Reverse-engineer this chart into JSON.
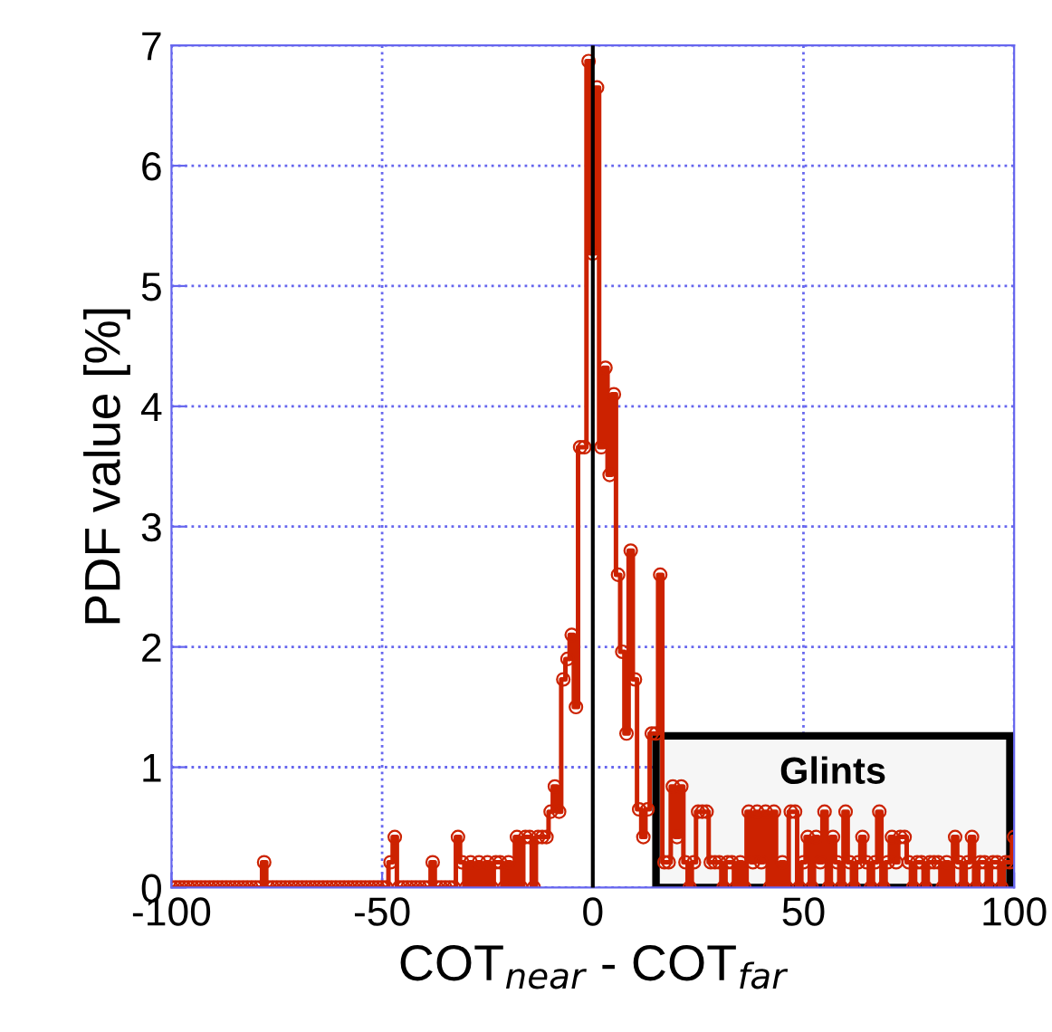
{
  "chart_data": {
    "type": "step",
    "xlabel": "COT$_{near}$ - COT$_{far}$",
    "ylabel": "PDF value [%]",
    "x": [
      -100,
      -99,
      -98,
      -97,
      -96,
      -95,
      -94,
      -93,
      -92,
      -91,
      -90,
      -89,
      -88,
      -87,
      -86,
      -85,
      -84,
      -83,
      -82,
      -81,
      -80,
      -79,
      -78,
      -77,
      -76,
      -75,
      -74,
      -73,
      -72,
      -71,
      -70,
      -69,
      -68,
      -67,
      -66,
      -65,
      -64,
      -63,
      -62,
      -61,
      -60,
      -59,
      -58,
      -57,
      -56,
      -55,
      -54,
      -53,
      -52,
      -51,
      -50,
      -49,
      -48,
      -47,
      -46,
      -45,
      -44,
      -43,
      -42,
      -41,
      -40,
      -39,
      -38,
      -37,
      -36,
      -35,
      -34,
      -33,
      -32,
      -31,
      -30,
      -29,
      -28,
      -27,
      -26,
      -25,
      -24,
      -23,
      -22,
      -21,
      -20,
      -19,
      -18,
      -17,
      -16,
      -15,
      -14,
      -13,
      -12,
      -11,
      -10,
      -9,
      -8,
      -7,
      -6,
      -5,
      -4,
      -3,
      -2,
      -1,
      0,
      1,
      2,
      3,
      4,
      5,
      6,
      7,
      8,
      9,
      10,
      11,
      12,
      13,
      14,
      15,
      16,
      17,
      18,
      19,
      20,
      21,
      22,
      23,
      24,
      25,
      26,
      27,
      28,
      29,
      30,
      31,
      32,
      33,
      34,
      35,
      36,
      37,
      38,
      39,
      40,
      41,
      42,
      43,
      44,
      45,
      46,
      47,
      48,
      49,
      50,
      51,
      52,
      53,
      54,
      55,
      56,
      57,
      58,
      59,
      60,
      61,
      62,
      63,
      64,
      65,
      66,
      67,
      68,
      69,
      70,
      71,
      72,
      73,
      74,
      75,
      76,
      77,
      78,
      79,
      80,
      81,
      82,
      83,
      84,
      85,
      86,
      87,
      88,
      89,
      90,
      91,
      92,
      93,
      94,
      95,
      96,
      97,
      98,
      99,
      100
    ],
    "series": [
      {
        "color": "#cc2200",
        "values": [
          0,
          0,
          0,
          0,
          0,
          0,
          0,
          0,
          0,
          0,
          0,
          0,
          0,
          0,
          0,
          0,
          0,
          0,
          0,
          0,
          0,
          0,
          0.21,
          0,
          0,
          0,
          0,
          0,
          0,
          0,
          0,
          0,
          0,
          0,
          0,
          0,
          0,
          0,
          0,
          0,
          0,
          0,
          0,
          0,
          0,
          0,
          0,
          0,
          0,
          0,
          0,
          0,
          0.21,
          0.42,
          0,
          0,
          0,
          0,
          0,
          0,
          0,
          0,
          0.21,
          0,
          0,
          0,
          0,
          0,
          0.42,
          0.21,
          0,
          0.21,
          0,
          0.21,
          0,
          0.21,
          0,
          0.21,
          0.21,
          0,
          0.21,
          0,
          0.42,
          0,
          0.42,
          0.42,
          0,
          0.42,
          0.42,
          0.42,
          0.63,
          0.84,
          0.63,
          1.73,
          1.9,
          2.1,
          1.5,
          3.66,
          3.66,
          6.87,
          5.27,
          6.65,
          3.66,
          4.32,
          3.43,
          4.1,
          2.6,
          1.96,
          1.28,
          2.8,
          1.73,
          0.65,
          0.42,
          0.65,
          1.28,
          1.28,
          2.6,
          0.21,
          0.21,
          0.84,
          0.42,
          0.84,
          0.21,
          0,
          0.21,
          0.63,
          0.63,
          0.63,
          0.21,
          0.21,
          0.21,
          0,
          0.21,
          0.21,
          0,
          0.21,
          0,
          0.63,
          0.21,
          0.63,
          0.21,
          0.63,
          0,
          0.63,
          0,
          0.21,
          0,
          0.63,
          0.63,
          0,
          0.21,
          0.42,
          0,
          0.42,
          0.21,
          0.63,
          0,
          0.42,
          0.21,
          0,
          0.63,
          0.21,
          0,
          0.21,
          0.42,
          0.21,
          0,
          0.21,
          0.63,
          0,
          0.21,
          0.42,
          0.21,
          0.42,
          0.42,
          0.21,
          0,
          0.21,
          0.21,
          0,
          0.21,
          0.21,
          0.21,
          0,
          0.21,
          0,
          0.42,
          0.21,
          0,
          0.21,
          0.42,
          0,
          0.21,
          0.21,
          0,
          0.21,
          0.21,
          0,
          0.21,
          0.21,
          0.42
        ]
      }
    ],
    "xlim": [
      -100,
      100
    ],
    "xticks": [
      -100,
      -50,
      0,
      50,
      100
    ],
    "ylim": [
      0,
      7
    ],
    "yticks": [
      0,
      1,
      2,
      3,
      4,
      5,
      6,
      7
    ],
    "grid": true,
    "marker": "circle",
    "line_style": "solid",
    "legend": false,
    "ref_lines": [
      {
        "axis": "x",
        "value": 0,
        "color": "#000000"
      }
    ],
    "bands": [
      {
        "axis": "x",
        "from": 15,
        "to": 99,
        "label": "Glints",
        "color": "#000000"
      }
    ]
  }
}
